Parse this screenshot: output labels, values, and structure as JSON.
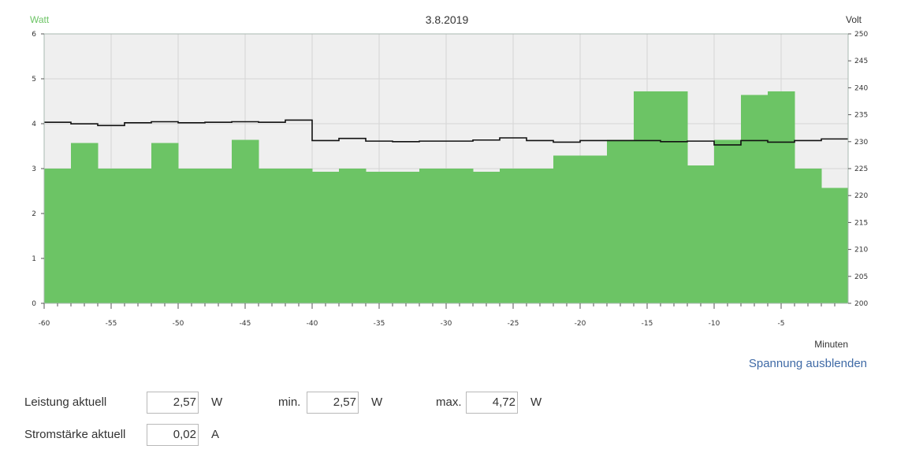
{
  "chart_data": {
    "type": "bar",
    "title": "3.8.2019",
    "y_left_label": "Watt",
    "y_right_label": "Volt",
    "x_label": "Minuten",
    "x_range": [
      -60,
      0
    ],
    "x_ticks": [
      -60,
      -55,
      -50,
      -45,
      -40,
      -35,
      -30,
      -25,
      -20,
      -15,
      -10,
      -5
    ],
    "y_left_range": [
      0,
      6
    ],
    "y_left_ticks": [
      0,
      1,
      2,
      3,
      4,
      5,
      6
    ],
    "y_right_range": [
      200,
      250
    ],
    "y_right_ticks": [
      200,
      205,
      210,
      215,
      220,
      225,
      230,
      235,
      240,
      245,
      250
    ],
    "grid": true,
    "series": [
      {
        "name": "Leistung",
        "unit": "W",
        "axis": "left",
        "color": "#6cc465",
        "bin_width_min": 2,
        "bins_start": [
          -60,
          -58,
          -56,
          -54,
          -52,
          -50,
          -48,
          -46,
          -44,
          -42,
          -40,
          -38,
          -36,
          -34,
          -32,
          -30,
          -28,
          -26,
          -24,
          -22,
          -20,
          -18,
          -16,
          -14,
          -12,
          -10,
          -8,
          -6,
          -4,
          -2
        ],
        "values": [
          3.0,
          3.57,
          3.0,
          3.0,
          3.57,
          3.0,
          3.0,
          3.64,
          3.0,
          3.0,
          2.93,
          3.0,
          2.93,
          2.93,
          3.0,
          3.0,
          2.93,
          3.0,
          3.0,
          3.29,
          3.29,
          3.64,
          4.72,
          4.72,
          3.07,
          3.64,
          4.64,
          4.72,
          3.0,
          2.57
        ]
      },
      {
        "name": "Spannung",
        "unit": "V",
        "axis": "right",
        "color": "#111111",
        "bin_width_min": 2,
        "bins_start": [
          -60,
          -58,
          -56,
          -54,
          -52,
          -50,
          -48,
          -46,
          -44,
          -42,
          -40,
          -38,
          -36,
          -34,
          -32,
          -30,
          -28,
          -26,
          -24,
          -22,
          -20,
          -18,
          -16,
          -14,
          -12,
          -10,
          -8,
          -6,
          -4,
          -2
        ],
        "values": [
          233.6,
          233.3,
          233.0,
          233.5,
          233.7,
          233.5,
          233.6,
          233.7,
          233.6,
          234.0,
          230.2,
          230.6,
          230.1,
          230.0,
          230.1,
          230.1,
          230.3,
          230.7,
          230.2,
          229.9,
          230.2,
          230.2,
          230.2,
          230.0,
          230.1,
          229.4,
          230.2,
          229.9,
          230.2,
          230.5
        ]
      }
    ]
  },
  "controls": {
    "toggle_voltage_label": "Spannung ausblenden"
  },
  "readouts": {
    "power_label": "Leistung aktuell",
    "power_value": "2,57",
    "power_unit": "W",
    "min_label": "min.",
    "min_value": "2,57",
    "min_unit": "W",
    "max_label": "max.",
    "max_value": "4,72",
    "max_unit": "W",
    "current_label": "Stromstärke aktuell",
    "current_value": "0,02",
    "current_unit": "A"
  },
  "colors": {
    "watt_axis": "#6cc465",
    "plot_background": "#efefef",
    "link": "#3f6aa6"
  }
}
